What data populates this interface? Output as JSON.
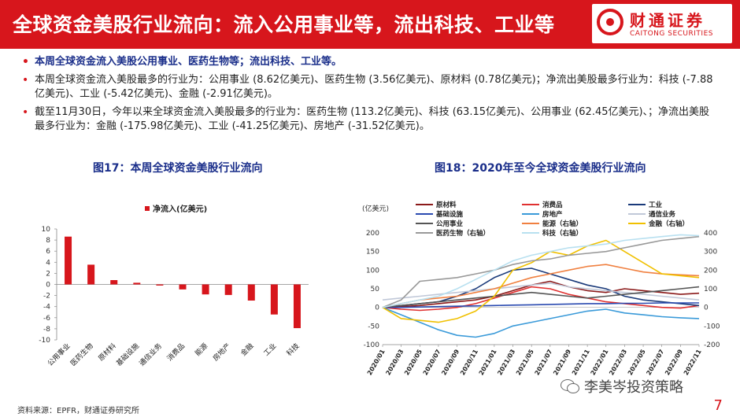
{
  "header": {
    "title": "全球资金美股行业流向：流入公用事业等，流出科技、工业等",
    "logo_cn": "财通证券",
    "logo_en": "CAITONG SECURITIES",
    "accent_color": "#d7161c"
  },
  "bullets": [
    "本周全球资金流入美股公用事业、医药生物等；流出科技、工业等。",
    "本周全球资金流入美股最多的行业为：公用事业 (8.62亿美元)、医药生物 (3.56亿美元)、原材料 (0.78亿美元)；净流出美股最多行业为：科技 (-7.88亿美元)、工业 (-5.42亿美元)、金融 (-2.91亿美元)。",
    "截至11月30日，今年以来全球资金流入美股最多的行业为：医药生物 (113.2亿美元)、科技 (63.15亿美元)、公用事业 (62.45亿美元)、；净流出美股最多行业为：金融 (-175.98亿美元)、工业 (-41.25亿美元)、房地产 (-31.52亿美元)。"
  ],
  "figures": {
    "fig17_title": "图17：本周全球资金美股行业流向",
    "fig18_title": "图18：2020年至今全球资金美股行业流向"
  },
  "chart_data": [
    {
      "type": "bar",
      "title": "图17：本周全球资金美股行业流向",
      "legend": "净流入(亿美元)",
      "color": "#d7161c",
      "categories": [
        "公用事业",
        "医药生物",
        "原材料",
        "基础设施",
        "通信业务",
        "消费品",
        "能源",
        "房地产",
        "金融",
        "工业",
        "科技"
      ],
      "values": [
        8.62,
        3.56,
        0.78,
        0.3,
        -0.2,
        -0.9,
        -1.8,
        -1.9,
        -2.91,
        -5.42,
        -7.88
      ],
      "ylim": [
        -10,
        10
      ],
      "yticks": [
        "10",
        "8",
        "6",
        "4",
        "2",
        "0",
        "-2",
        "-4",
        "-6",
        "-8",
        "-10"
      ]
    },
    {
      "type": "line",
      "title": "图18：2020年至今全球资金美股行业流向",
      "ylabel": "(亿美元)",
      "left_ylim": [
        -100,
        200
      ],
      "right_ylim": [
        -200,
        400
      ],
      "left_ticks": [
        "200",
        "150",
        "100",
        "50",
        "0",
        "-50",
        "-100"
      ],
      "right_ticks": [
        "400",
        "300",
        "200",
        "100",
        "0",
        "-100",
        "-200"
      ],
      "x_labels": [
        "2020/01",
        "2020/03",
        "2020/05",
        "2020/07",
        "2020/09",
        "2020/11",
        "2021/01",
        "2021/03",
        "2021/05",
        "2021/07",
        "2021/09",
        "2021/11",
        "2022/01",
        "2022/03",
        "2022/05",
        "2022/07",
        "2022/09",
        "2022/11"
      ],
      "series": [
        {
          "name": "原材料",
          "color": "#8b1a1a",
          "axis": "left",
          "values": [
            0,
            2,
            5,
            10,
            15,
            20,
            30,
            45,
            60,
            70,
            55,
            45,
            40,
            50,
            45,
            40,
            35,
            38
          ]
        },
        {
          "name": "消费品",
          "color": "#e03030",
          "axis": "left",
          "values": [
            0,
            -5,
            -8,
            -5,
            0,
            10,
            25,
            40,
            55,
            50,
            35,
            25,
            15,
            10,
            5,
            0,
            -2,
            5
          ]
        },
        {
          "name": "工业",
          "color": "#1a3a7a",
          "axis": "left",
          "values": [
            0,
            5,
            10,
            15,
            30,
            50,
            80,
            100,
            105,
            90,
            75,
            60,
            50,
            30,
            20,
            15,
            10,
            5
          ]
        },
        {
          "name": "基础设施",
          "color": "#2a4ab0",
          "axis": "left",
          "values": [
            0,
            0,
            1,
            2,
            3,
            4,
            5,
            6,
            7,
            8,
            9,
            10,
            10,
            11,
            11,
            12,
            12,
            12
          ]
        },
        {
          "name": "房地产",
          "color": "#3a9ad9",
          "axis": "left",
          "values": [
            0,
            -20,
            -40,
            -60,
            -75,
            -80,
            -70,
            -50,
            -40,
            -30,
            -20,
            -10,
            -5,
            -15,
            -20,
            -25,
            -28,
            -30
          ]
        },
        {
          "name": "通信业务",
          "color": "#c0c8d8",
          "axis": "left",
          "values": [
            20,
            25,
            30,
            35,
            40,
            45,
            50,
            55,
            60,
            65,
            55,
            50,
            45,
            40,
            35,
            30,
            25,
            20
          ]
        },
        {
          "name": "公用事业",
          "color": "#555555",
          "axis": "left",
          "values": [
            0,
            5,
            10,
            15,
            20,
            25,
            30,
            35,
            40,
            35,
            30,
            25,
            30,
            35,
            40,
            45,
            50,
            55
          ]
        },
        {
          "name": "能源（右轴）",
          "color": "#f08040",
          "axis": "right",
          "values": [
            0,
            20,
            40,
            50,
            60,
            80,
            100,
            130,
            160,
            180,
            200,
            220,
            230,
            210,
            190,
            180,
            175,
            170
          ]
        },
        {
          "name": "金融（右轴）",
          "color": "#f0c000",
          "axis": "right",
          "values": [
            0,
            -60,
            -70,
            -80,
            -60,
            -20,
            60,
            200,
            240,
            300,
            280,
            330,
            360,
            300,
            240,
            180,
            170,
            160
          ]
        },
        {
          "name": "医药生物（右轴）",
          "color": "#999999",
          "axis": "right",
          "values": [
            0,
            40,
            140,
            150,
            160,
            180,
            200,
            230,
            250,
            260,
            280,
            290,
            300,
            320,
            340,
            360,
            370,
            380
          ]
        },
        {
          "name": "科技（右轴）",
          "color": "#b8e0f0",
          "axis": "right",
          "values": [
            0,
            20,
            40,
            60,
            100,
            150,
            200,
            250,
            280,
            300,
            320,
            330,
            340,
            360,
            370,
            380,
            390,
            385
          ]
        }
      ]
    }
  ],
  "footer": {
    "source": "资料来源：EPFR，财通证券研究所",
    "watermark": "李美岑投资策略",
    "page_number": "7"
  }
}
